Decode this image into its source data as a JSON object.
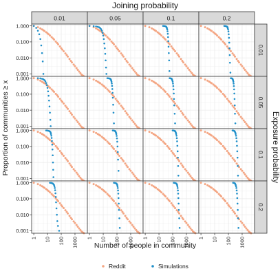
{
  "chart_data": {
    "type": "scatter",
    "title": "Joining probability",
    "xlabel": "Number of people in community",
    "ylabel": "Proportion of communities ≥ x",
    "right_label": "Exposure probability",
    "facet_cols": {
      "name": "Joining probability",
      "levels": [
        "0.01",
        "0.05",
        "0.1",
        "0.2"
      ]
    },
    "facet_rows": {
      "name": "Exposure probability",
      "levels": [
        "0.01",
        "0.05",
        "0.1",
        "0.2"
      ]
    },
    "x_scale": "log10",
    "y_scale": "log10",
    "xlim": [
      0.7,
      8000
    ],
    "ylim": [
      0.0007,
      1.3
    ],
    "x_ticks": [
      1,
      10,
      100,
      1000
    ],
    "x_tick_labels": [
      "1",
      "10",
      "100",
      "1000"
    ],
    "y_ticks": [
      0.001,
      0.01,
      0.1,
      1
    ],
    "y_tick_labels": [
      "0.001",
      "0.010",
      "0.100",
      "1.000"
    ],
    "grid": true,
    "legend_position": "bottom",
    "colors": {
      "Reddit": "#f4a582",
      "Simulations": "#1f8fc9",
      "strip": "#d9d9d9",
      "grid": "#ebebeb",
      "border": "#333333"
    },
    "series": [
      {
        "name": "Reddit",
        "shared_across_panels": true,
        "x": [
          1,
          2,
          3,
          4,
          5,
          6,
          8,
          10,
          12,
          15,
          20,
          25,
          30,
          40,
          50,
          60,
          80,
          100,
          120,
          150,
          200,
          250,
          300,
          400,
          500,
          600,
          800,
          1000,
          1300,
          1600,
          2000,
          2500,
          3000,
          3500,
          4000,
          4500
        ],
        "y": [
          1.0,
          0.82,
          0.7,
          0.6,
          0.53,
          0.48,
          0.4,
          0.34,
          0.3,
          0.25,
          0.2,
          0.165,
          0.14,
          0.105,
          0.085,
          0.07,
          0.052,
          0.04,
          0.033,
          0.026,
          0.019,
          0.015,
          0.012,
          0.0085,
          0.0065,
          0.0052,
          0.0038,
          0.003,
          0.0023,
          0.0018,
          0.0014,
          0.0011,
          0.0009,
          0.0008,
          0.00075,
          0.0007
        ]
      },
      {
        "name": "Simulations",
        "panels": [
          {
            "row": "0.01",
            "col": "0.01",
            "x": [
              1,
              1.5,
              2,
              2.5,
              3,
              3.5,
              4,
              4.5,
              5
            ],
            "y": [
              1.0,
              0.75,
              0.5,
              0.3,
              0.15,
              0.06,
              0.02,
              0.006,
              0.001
            ]
          },
          {
            "row": "0.01",
            "col": "0.05",
            "x": [
              1,
              2,
              3,
              4,
              5,
              6,
              7,
              8,
              9,
              10,
              11,
              12,
              13,
              14,
              15,
              16,
              17
            ],
            "y": [
              1.0,
              0.97,
              0.93,
              0.88,
              0.82,
              0.73,
              0.62,
              0.5,
              0.37,
              0.25,
              0.15,
              0.08,
              0.04,
              0.018,
              0.007,
              0.0025,
              0.001
            ]
          },
          {
            "row": "0.01",
            "col": "0.1",
            "x": [
              20,
              25,
              30,
              33,
              36,
              38,
              40,
              42,
              44,
              46,
              48,
              50,
              52,
              55,
              58
            ],
            "y": [
              1.0,
              0.98,
              0.95,
              0.9,
              0.82,
              0.72,
              0.6,
              0.46,
              0.32,
              0.2,
              0.11,
              0.05,
              0.02,
              0.007,
              0.0015
            ]
          },
          {
            "row": "0.01",
            "col": "0.2",
            "x": [
              50,
              60,
              70,
              80,
              85,
              90,
              95,
              100,
              105,
              110,
              115,
              120,
              125,
              130,
              140
            ],
            "y": [
              1.0,
              0.98,
              0.95,
              0.9,
              0.82,
              0.72,
              0.6,
              0.45,
              0.3,
              0.18,
              0.09,
              0.04,
              0.015,
              0.005,
              0.0012
            ]
          },
          {
            "row": "0.05",
            "col": "0.01",
            "x": [
              2,
              3,
              4,
              5,
              6,
              7,
              8,
              9,
              10,
              11,
              12,
              13,
              14,
              15,
              16,
              17
            ],
            "y": [
              1.0,
              0.97,
              0.92,
              0.85,
              0.76,
              0.64,
              0.5,
              0.37,
              0.25,
              0.15,
              0.08,
              0.04,
              0.017,
              0.007,
              0.0025,
              0.001
            ]
          },
          {
            "row": "0.05",
            "col": "0.05",
            "x": [
              20,
              25,
              30,
              33,
              36,
              38,
              40,
              42,
              44,
              46,
              48,
              50,
              53,
              56,
              60
            ],
            "y": [
              1.0,
              0.98,
              0.95,
              0.9,
              0.82,
              0.72,
              0.6,
              0.47,
              0.33,
              0.21,
              0.12,
              0.06,
              0.022,
              0.007,
              0.0015
            ]
          },
          {
            "row": "0.05",
            "col": "0.1",
            "x": [
              60,
              70,
              80,
              85,
              90,
              95,
              100,
              105,
              110,
              115,
              120,
              125,
              130,
              140,
              150
            ],
            "y": [
              1.0,
              0.98,
              0.95,
              0.9,
              0.82,
              0.72,
              0.6,
              0.46,
              0.32,
              0.2,
              0.11,
              0.05,
              0.02,
              0.006,
              0.0015
            ]
          },
          {
            "row": "0.05",
            "col": "0.2",
            "x": [
              150,
              170,
              190,
              200,
              210,
              220,
              230,
              240,
              250,
              260,
              270,
              280,
              290,
              300,
              320
            ],
            "y": [
              1.0,
              0.98,
              0.95,
              0.9,
              0.82,
              0.72,
              0.6,
              0.46,
              0.32,
              0.2,
              0.11,
              0.05,
              0.02,
              0.006,
              0.0015
            ]
          },
          {
            "row": "0.1",
            "col": "0.01",
            "x": [
              8,
              10,
              12,
              14,
              16,
              17,
              18,
              19,
              20,
              21,
              22,
              23,
              24,
              25,
              26,
              27
            ],
            "y": [
              1.0,
              0.98,
              0.95,
              0.9,
              0.82,
              0.72,
              0.6,
              0.47,
              0.34,
              0.22,
              0.13,
              0.065,
              0.028,
              0.01,
              0.0035,
              0.0012
            ]
          },
          {
            "row": "0.1",
            "col": "0.05",
            "x": [
              50,
              60,
              70,
              75,
              80,
              85,
              90,
              95,
              100,
              105,
              110,
              115,
              120,
              130
            ],
            "y": [
              1.0,
              0.98,
              0.95,
              0.9,
              0.82,
              0.72,
              0.6,
              0.46,
              0.32,
              0.2,
              0.1,
              0.045,
              0.015,
              0.003
            ]
          },
          {
            "row": "0.1",
            "col": "0.1",
            "x": [
              100,
              120,
              140,
              150,
              160,
              170,
              180,
              190,
              200,
              210,
              220,
              230,
              240,
              250,
              260
            ],
            "y": [
              1.0,
              0.98,
              0.95,
              0.9,
              0.82,
              0.72,
              0.6,
              0.47,
              0.33,
              0.21,
              0.11,
              0.05,
              0.02,
              0.006,
              0.0015
            ]
          },
          {
            "row": "0.1",
            "col": "0.2",
            "x": [
              200,
              230,
              260,
              280,
              300,
              320,
              340,
              360,
              380,
              400,
              420,
              440,
              460,
              480,
              500
            ],
            "y": [
              1.0,
              0.98,
              0.95,
              0.9,
              0.82,
              0.72,
              0.6,
              0.47,
              0.33,
              0.21,
              0.11,
              0.05,
              0.02,
              0.006,
              0.0015
            ]
          },
          {
            "row": "0.2",
            "col": "0.01",
            "x": [
              15,
              18,
              21,
              24,
              27,
              30,
              32,
              34,
              36,
              38,
              40,
              42,
              45,
              48,
              52,
              58,
              70
            ],
            "y": [
              1.0,
              0.98,
              0.95,
              0.9,
              0.82,
              0.72,
              0.6,
              0.47,
              0.34,
              0.22,
              0.13,
              0.06,
              0.025,
              0.01,
              0.004,
              0.002,
              0.001
            ]
          },
          {
            "row": "0.2",
            "col": "0.05",
            "x": [
              60,
              70,
              80,
              90,
              100,
              105,
              110,
              115,
              120,
              125,
              130,
              135,
              140,
              150,
              160
            ],
            "y": [
              1.0,
              0.98,
              0.95,
              0.9,
              0.82,
              0.72,
              0.6,
              0.47,
              0.33,
              0.21,
              0.11,
              0.05,
              0.02,
              0.006,
              0.0015
            ]
          },
          {
            "row": "0.2",
            "col": "0.1",
            "x": [
              120,
              140,
              160,
              180,
              200,
              210,
              220,
              230,
              240,
              250,
              260,
              270,
              280,
              300,
              320
            ],
            "y": [
              1.0,
              0.98,
              0.95,
              0.9,
              0.82,
              0.72,
              0.6,
              0.47,
              0.33,
              0.21,
              0.11,
              0.05,
              0.02,
              0.006,
              0.0015
            ]
          },
          {
            "row": "0.2",
            "col": "0.2",
            "x": [
              220,
              250,
              280,
              300,
              320,
              340,
              360,
              380,
              400,
              420,
              440,
              460,
              480,
              500,
              540
            ],
            "y": [
              1.0,
              0.98,
              0.95,
              0.9,
              0.82,
              0.72,
              0.6,
              0.47,
              0.33,
              0.21,
              0.11,
              0.05,
              0.02,
              0.006,
              0.0015
            ]
          }
        ]
      }
    ],
    "legend": [
      {
        "label": "Reddit",
        "color": "#f4a582"
      },
      {
        "label": "Simulations",
        "color": "#1f8fc9"
      }
    ]
  }
}
